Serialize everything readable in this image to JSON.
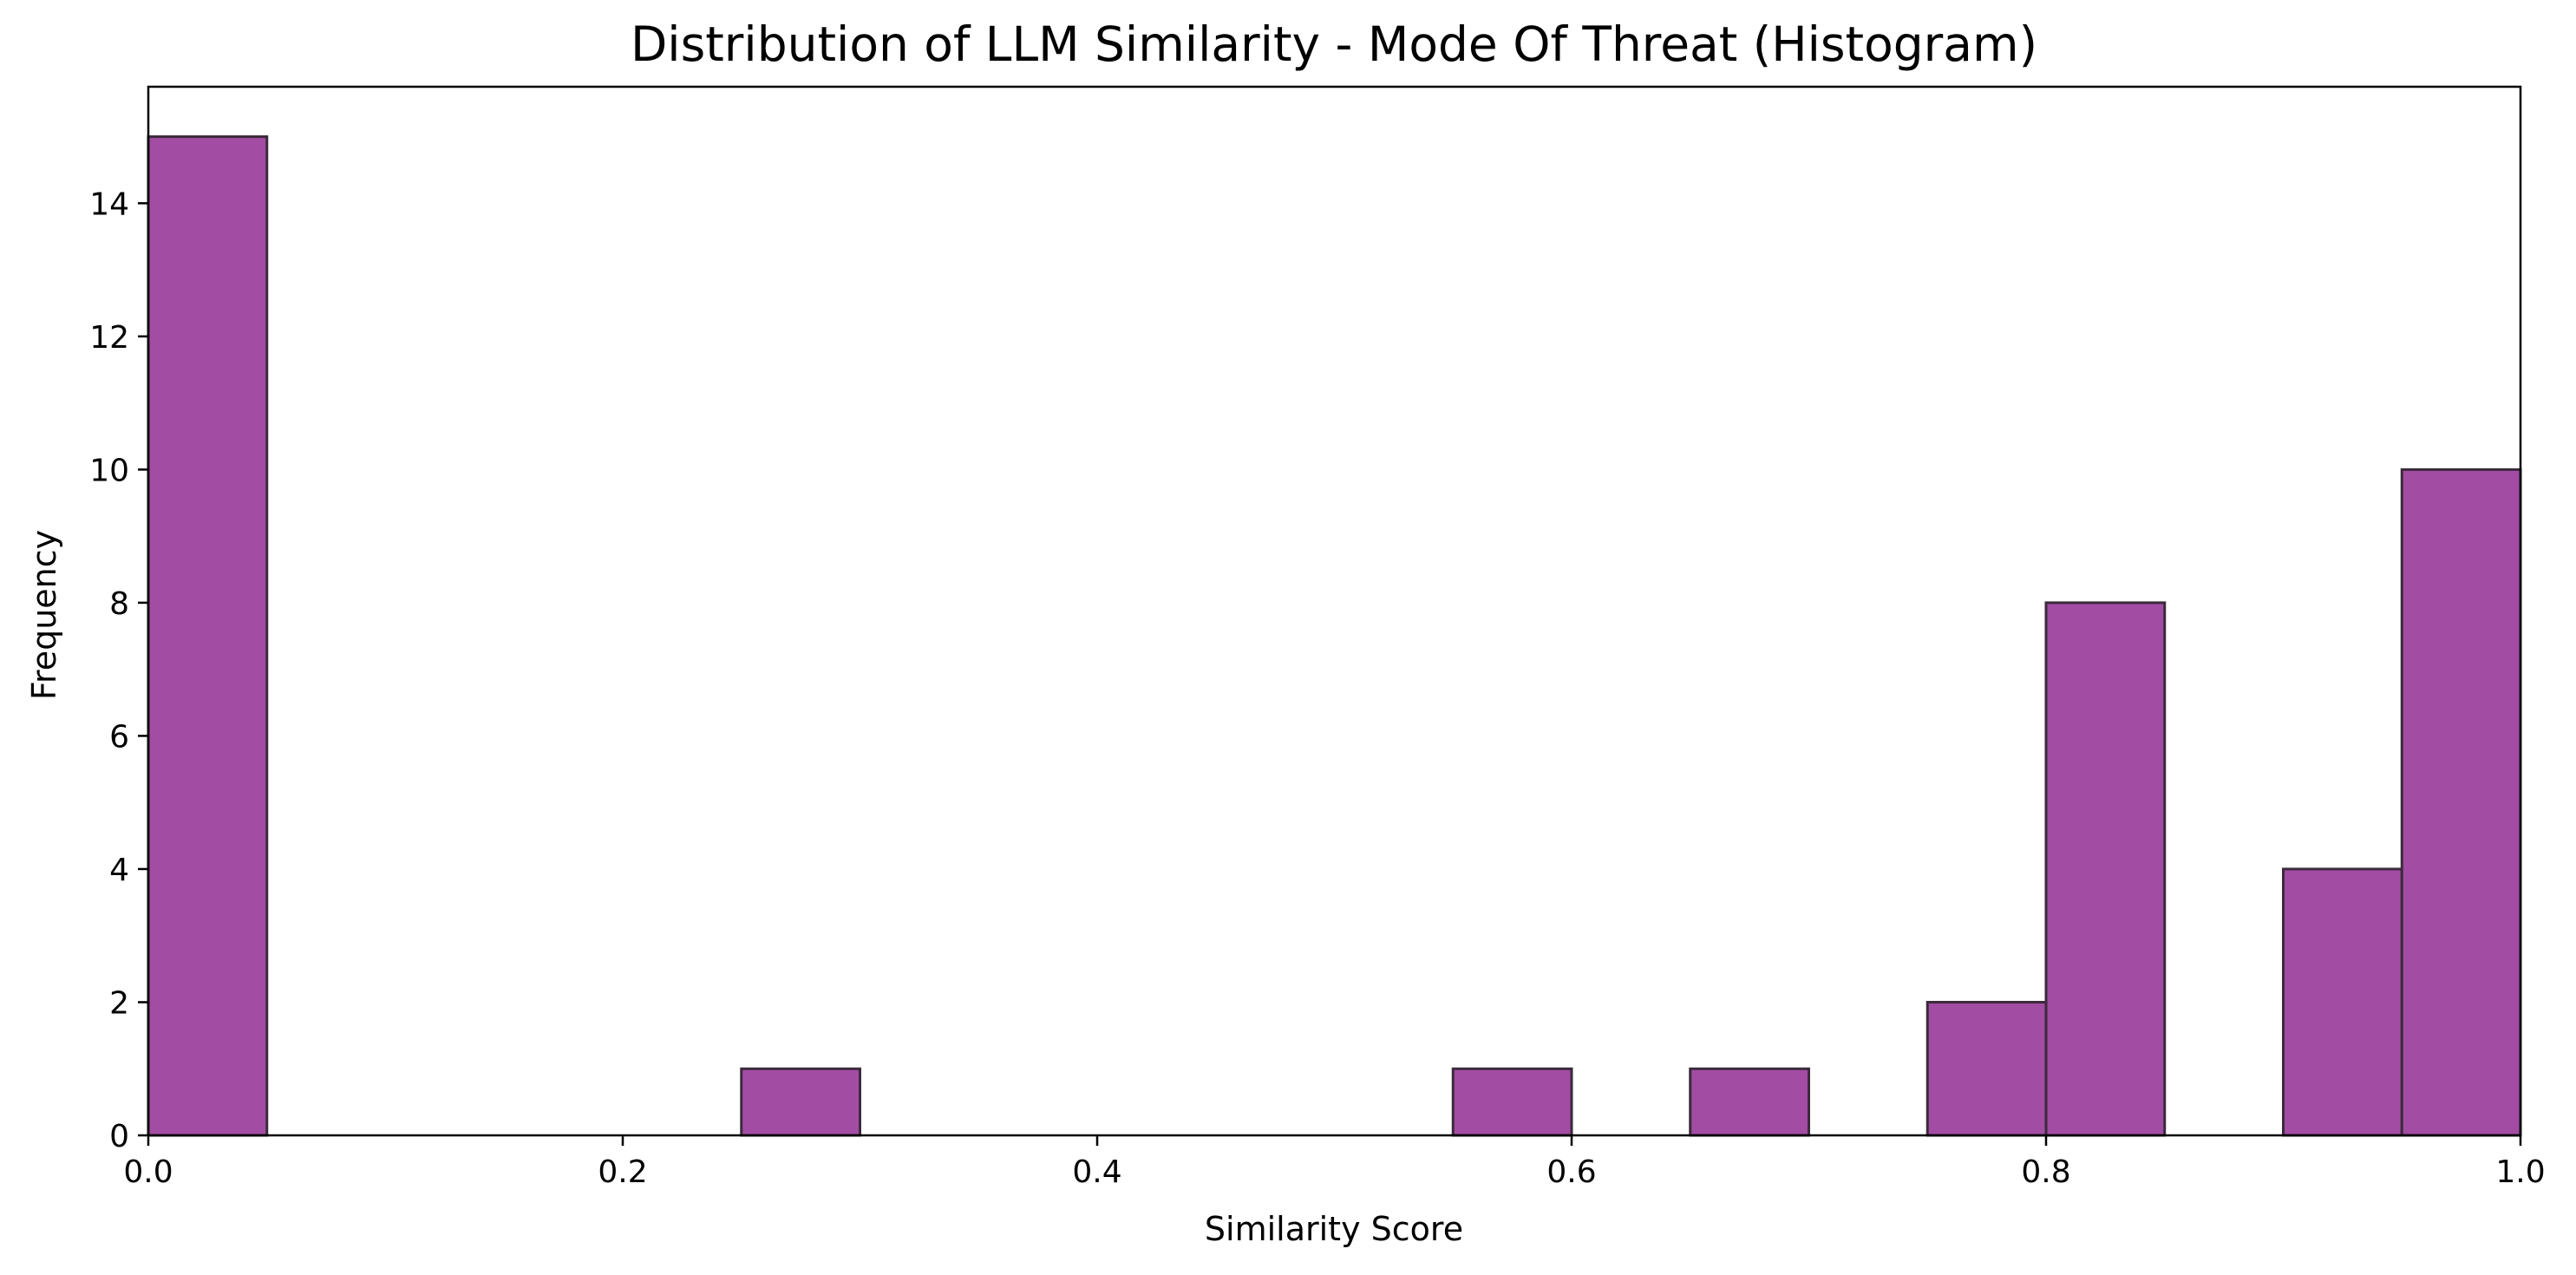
{
  "chart_data": {
    "type": "bar",
    "title": "Distribution of LLM Similarity - Mode Of Threat (Histogram)",
    "xlabel": "Similarity Score",
    "ylabel": "Frequency",
    "xlim": [
      0.0,
      1.0
    ],
    "ylim": [
      0,
      15.75
    ],
    "xticks": [
      0.0,
      0.2,
      0.4,
      0.6,
      0.8,
      1.0
    ],
    "xtick_labels": [
      "0.0",
      "0.2",
      "0.4",
      "0.6",
      "0.8",
      "1.0"
    ],
    "yticks": [
      0,
      2,
      4,
      6,
      8,
      10,
      12,
      14
    ],
    "ytick_labels": [
      "0",
      "2",
      "4",
      "6",
      "8",
      "10",
      "12",
      "14"
    ],
    "bin_width": 0.05,
    "bins": [
      {
        "x0": 0.0,
        "x1": 0.05,
        "count": 15
      },
      {
        "x0": 0.25,
        "x1": 0.3,
        "count": 1
      },
      {
        "x0": 0.55,
        "x1": 0.6,
        "count": 1
      },
      {
        "x0": 0.65,
        "x1": 0.7,
        "count": 1
      },
      {
        "x0": 0.75,
        "x1": 0.8,
        "count": 2
      },
      {
        "x0": 0.8,
        "x1": 0.85,
        "count": 8
      },
      {
        "x0": 0.9,
        "x1": 0.95,
        "count": 4
      },
      {
        "x0": 0.95,
        "x1": 1.0,
        "count": 10
      }
    ],
    "bar_color": "#a24ca4",
    "bar_edge_color": "#3b2a3b",
    "grid": false,
    "legend": "none"
  }
}
